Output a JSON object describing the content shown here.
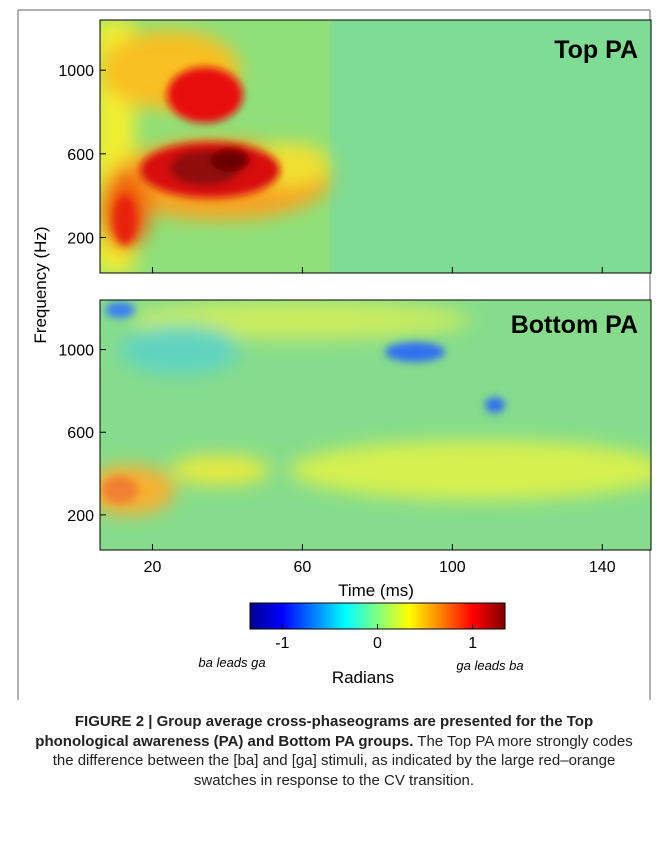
{
  "figure": {
    "panels": [
      {
        "label": "Top PA"
      },
      {
        "label": "Bottom PA"
      }
    ],
    "x_axis": {
      "label": "Time (ms)",
      "lim": [
        6,
        153
      ],
      "ticks": [
        20,
        60,
        100,
        140
      ]
    },
    "y_axis": {
      "label": "Frequency (Hz)",
      "lim": [
        30,
        1240
      ],
      "ticks": [
        200,
        600,
        1000
      ]
    },
    "colorbar": {
      "label": "Radians",
      "lim": [
        -1.34,
        1.34
      ],
      "ticks": [
        -1,
        0,
        1
      ],
      "left_note": "ba leads ga",
      "right_note": "ga leads ba"
    }
  },
  "caption": {
    "bold": "FIGURE 2 | Group average cross-phaseograms are presented for the Top phonological awareness (PA) and Bottom PA groups.",
    "text": "The Top PA more strongly codes the difference between the [ba] and [ga] stimuli, as indicated by the large red–orange swatches in response to the CV transition."
  }
}
